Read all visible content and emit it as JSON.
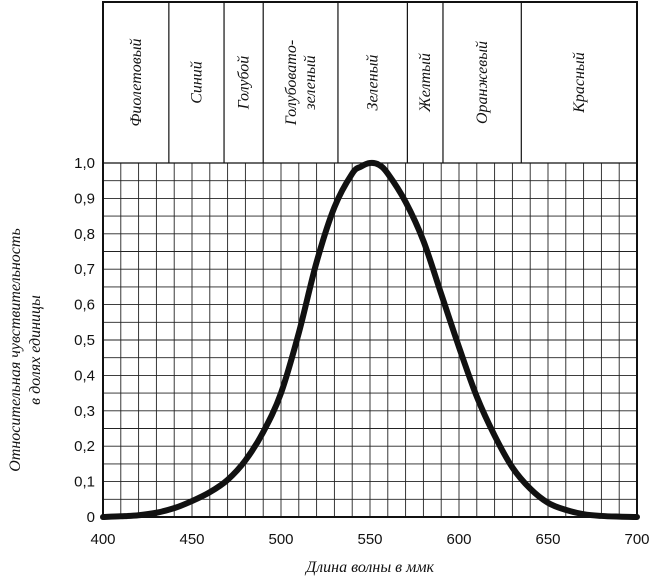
{
  "chart_data": {
    "type": "line",
    "title": "",
    "xlabel": "Длина волны в ммк",
    "ylabel": "Относительная чувствительность в долях единицы",
    "ylabel_lines": [
      "Относительная чувствительность",
      "в долях единицы"
    ],
    "xlim": [
      400,
      700
    ],
    "ylim": [
      0,
      1.0
    ],
    "x_ticks": [
      400,
      450,
      500,
      550,
      600,
      650,
      700
    ],
    "x_tick_labels": [
      "400",
      "450",
      "500",
      "550",
      "600",
      "650",
      "700"
    ],
    "y_ticks": [
      0,
      0.1,
      0.2,
      0.3,
      0.4,
      0.5,
      0.6,
      0.7,
      0.8,
      0.9,
      1.0
    ],
    "y_tick_labels": [
      "0",
      "0,1",
      "0,2",
      "0,3",
      "0,4",
      "0,5",
      "0,6",
      "0,7",
      "0,8",
      "0,9",
      "1,0"
    ],
    "grid": true,
    "x_grid_step": 10,
    "y_grid_step": 0.05,
    "bands": [
      {
        "label": "Фиолетовый",
        "from": 400,
        "to": 437
      },
      {
        "label": "Синий",
        "from": 437,
        "to": 468
      },
      {
        "label": "Голубой",
        "from": 468,
        "to": 490
      },
      {
        "label": "Голубовато-зеленый",
        "label_lines": [
          "Голубовато-",
          "зеленый"
        ],
        "from": 490,
        "to": 532
      },
      {
        "label": "Зеленый",
        "from": 532,
        "to": 571
      },
      {
        "label": "Желтый",
        "from": 571,
        "to": 591
      },
      {
        "label": "Оранжевый",
        "from": 591,
        "to": 635
      },
      {
        "label": "Красный",
        "from": 635,
        "to": 700
      }
    ],
    "series": [
      {
        "x": [
          400,
          410,
          420,
          430,
          440,
          450,
          460,
          470,
          480,
          490,
          500,
          510,
          520,
          530,
          540,
          545,
          550,
          555,
          560,
          570,
          580,
          590,
          600,
          610,
          620,
          630,
          640,
          650,
          660,
          670,
          680,
          690,
          700
        ],
        "y": [
          0.0,
          0.002,
          0.005,
          0.012,
          0.025,
          0.045,
          0.07,
          0.105,
          0.16,
          0.24,
          0.35,
          0.52,
          0.72,
          0.875,
          0.97,
          0.99,
          1.0,
          0.995,
          0.97,
          0.89,
          0.78,
          0.63,
          0.48,
          0.34,
          0.23,
          0.14,
          0.08,
          0.04,
          0.02,
          0.008,
          0.003,
          0.001,
          0.0
        ]
      }
    ]
  }
}
